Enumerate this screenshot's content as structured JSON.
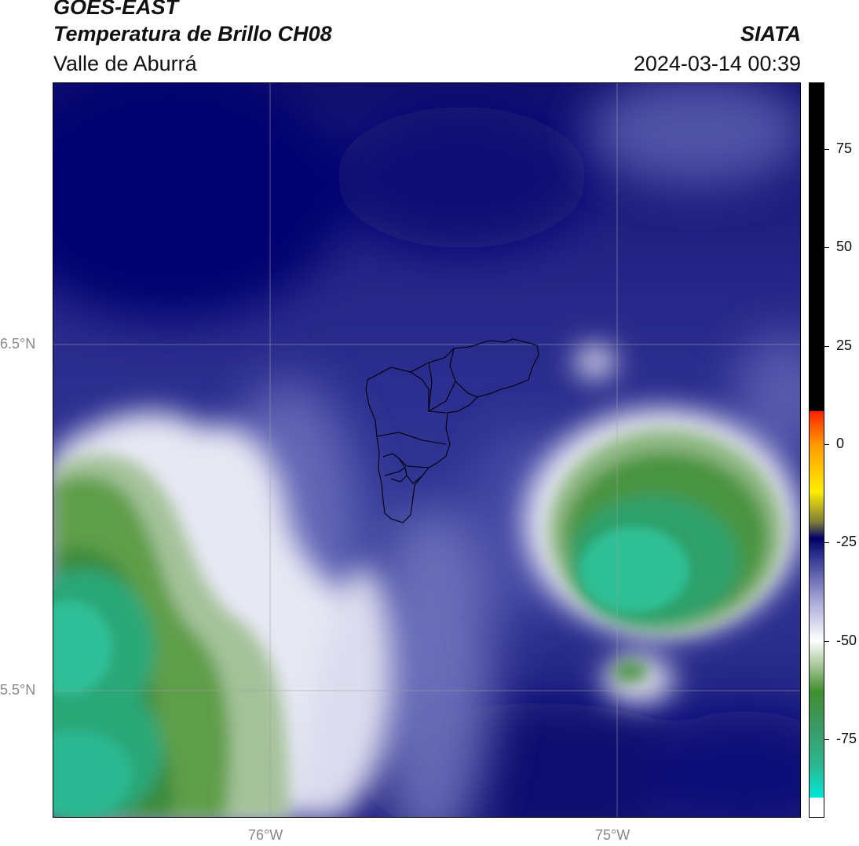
{
  "header": {
    "title_line1": "GOES-EAST",
    "title_line2": "Temperatura de Brillo CH08",
    "subtitle": "Valle de Aburrá",
    "org": "SIATA",
    "datetime": "2024-03-14 00:39"
  },
  "axes": {
    "lat_ticks": [
      "6.5°N",
      "5.5°N"
    ],
    "lon_ticks": [
      "76°W",
      "75°W"
    ]
  },
  "colorbar": {
    "ticks": [
      "75",
      "50",
      "25",
      "0",
      "-25",
      "-50",
      "-75"
    ],
    "tick_values": [
      75,
      50,
      25,
      0,
      -25,
      -50,
      -75
    ],
    "range": [
      -95,
      92
    ],
    "colors": {
      "black": "#000000",
      "red": "#ff2200",
      "orange": "#ff9900",
      "yellow": "#ffee00",
      "navy": "#000066",
      "blue": "#2a2e8c",
      "lavender": "#a8a8d8",
      "white": "#ffffff",
      "green": "#3f8f2e",
      "teal": "#2ab892",
      "cyan": "#00e8d8"
    }
  }
}
